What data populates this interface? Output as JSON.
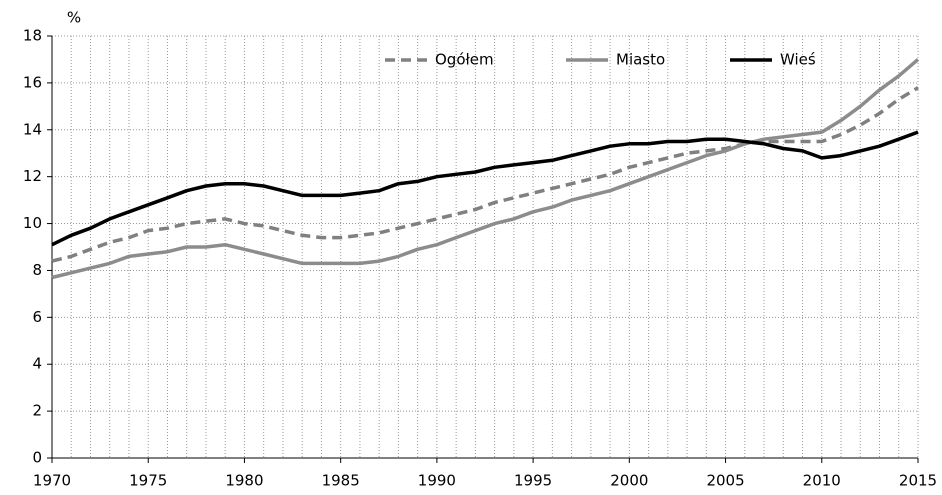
{
  "chart_data": {
    "type": "line",
    "y_label": "%",
    "x": [
      1970,
      1971,
      1972,
      1973,
      1974,
      1975,
      1976,
      1977,
      1978,
      1979,
      1980,
      1981,
      1982,
      1983,
      1984,
      1985,
      1986,
      1987,
      1988,
      1989,
      1990,
      1991,
      1992,
      1993,
      1994,
      1995,
      1996,
      1997,
      1998,
      1999,
      2000,
      2001,
      2002,
      2003,
      2004,
      2005,
      2006,
      2007,
      2008,
      2009,
      2010,
      2011,
      2012,
      2013,
      2014,
      2015
    ],
    "series": [
      {
        "name": "Ogółem",
        "color": "#808080",
        "dashed": true,
        "values": [
          8.4,
          8.6,
          8.9,
          9.2,
          9.4,
          9.7,
          9.8,
          10.0,
          10.1,
          10.2,
          10.0,
          9.9,
          9.7,
          9.5,
          9.4,
          9.4,
          9.5,
          9.6,
          9.8,
          10.0,
          10.2,
          10.4,
          10.6,
          10.9,
          11.1,
          11.3,
          11.5,
          11.7,
          11.9,
          12.1,
          12.4,
          12.6,
          12.8,
          13.0,
          13.1,
          13.2,
          13.4,
          13.5,
          13.5,
          13.5,
          13.5,
          13.8,
          14.2,
          14.7,
          15.3,
          15.8
        ]
      },
      {
        "name": "Miasto",
        "color": "#8c8c8c",
        "dashed": false,
        "values": [
          7.7,
          7.9,
          8.1,
          8.3,
          8.6,
          8.7,
          8.8,
          9.0,
          9.0,
          9.1,
          8.9,
          8.7,
          8.5,
          8.3,
          8.3,
          8.3,
          8.3,
          8.4,
          8.6,
          8.9,
          9.1,
          9.4,
          9.7,
          10.0,
          10.2,
          10.5,
          10.7,
          11.0,
          11.2,
          11.4,
          11.7,
          12.0,
          12.3,
          12.6,
          12.9,
          13.1,
          13.4,
          13.6,
          13.7,
          13.8,
          13.9,
          14.4,
          15.0,
          15.7,
          16.3,
          17.0
        ]
      },
      {
        "name": "Wieś",
        "color": "#000000",
        "dashed": false,
        "values": [
          9.1,
          9.5,
          9.8,
          10.2,
          10.5,
          10.8,
          11.1,
          11.4,
          11.6,
          11.7,
          11.7,
          11.6,
          11.4,
          11.2,
          11.2,
          11.2,
          11.3,
          11.4,
          11.7,
          11.8,
          12.0,
          12.1,
          12.2,
          12.4,
          12.5,
          12.6,
          12.7,
          12.9,
          13.1,
          13.3,
          13.4,
          13.4,
          13.5,
          13.5,
          13.6,
          13.6,
          13.5,
          13.4,
          13.2,
          13.1,
          12.8,
          12.9,
          13.1,
          13.3,
          13.6,
          13.9
        ]
      }
    ],
    "xlim": [
      1970,
      2015
    ],
    "xticks": [
      1970,
      1975,
      1980,
      1985,
      1990,
      1995,
      2000,
      2005,
      2010,
      2015
    ],
    "ylim": [
      0,
      18
    ],
    "yticks": [
      0,
      2,
      4,
      6,
      8,
      10,
      12,
      14,
      16,
      18
    ],
    "grid": true,
    "legend": "top"
  }
}
